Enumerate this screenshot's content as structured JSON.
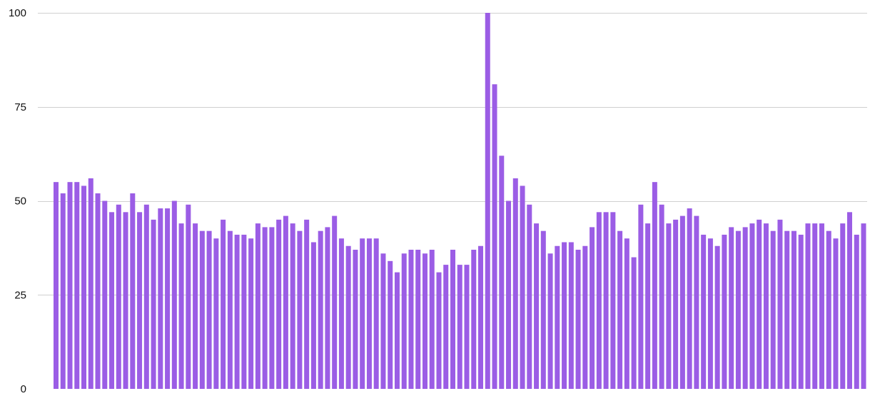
{
  "chart_data": {
    "type": "bar",
    "title": "",
    "xlabel": "",
    "ylabel": "",
    "ylim": [
      0,
      100
    ],
    "y_ticks": [
      0,
      25,
      50,
      75,
      100
    ],
    "grid": true,
    "legend": "none",
    "bar_color": "#9b5de5",
    "grid_color": "#d0d0d0",
    "values": [
      55,
      52,
      55,
      55,
      54,
      56,
      52,
      50,
      47,
      49,
      47,
      52,
      47,
      49,
      45,
      48,
      48,
      50,
      44,
      49,
      44,
      42,
      42,
      40,
      45,
      42,
      41,
      41,
      40,
      44,
      43,
      43,
      45,
      46,
      44,
      42,
      45,
      39,
      42,
      43,
      46,
      40,
      38,
      37,
      40,
      40,
      40,
      36,
      34,
      31,
      36,
      37,
      37,
      36,
      37,
      31,
      33,
      37,
      33,
      33,
      37,
      38,
      100,
      81,
      62,
      50,
      56,
      54,
      49,
      44,
      42,
      36,
      38,
      39,
      39,
      37,
      38,
      43,
      47,
      47,
      47,
      42,
      40,
      35,
      49,
      44,
      55,
      49,
      44,
      45,
      46,
      48,
      46,
      41,
      40,
      38,
      41,
      43,
      42,
      43,
      44,
      45,
      44,
      42,
      45,
      42,
      42,
      41,
      44,
      44,
      44,
      42,
      40,
      44,
      47,
      41,
      44
    ]
  }
}
